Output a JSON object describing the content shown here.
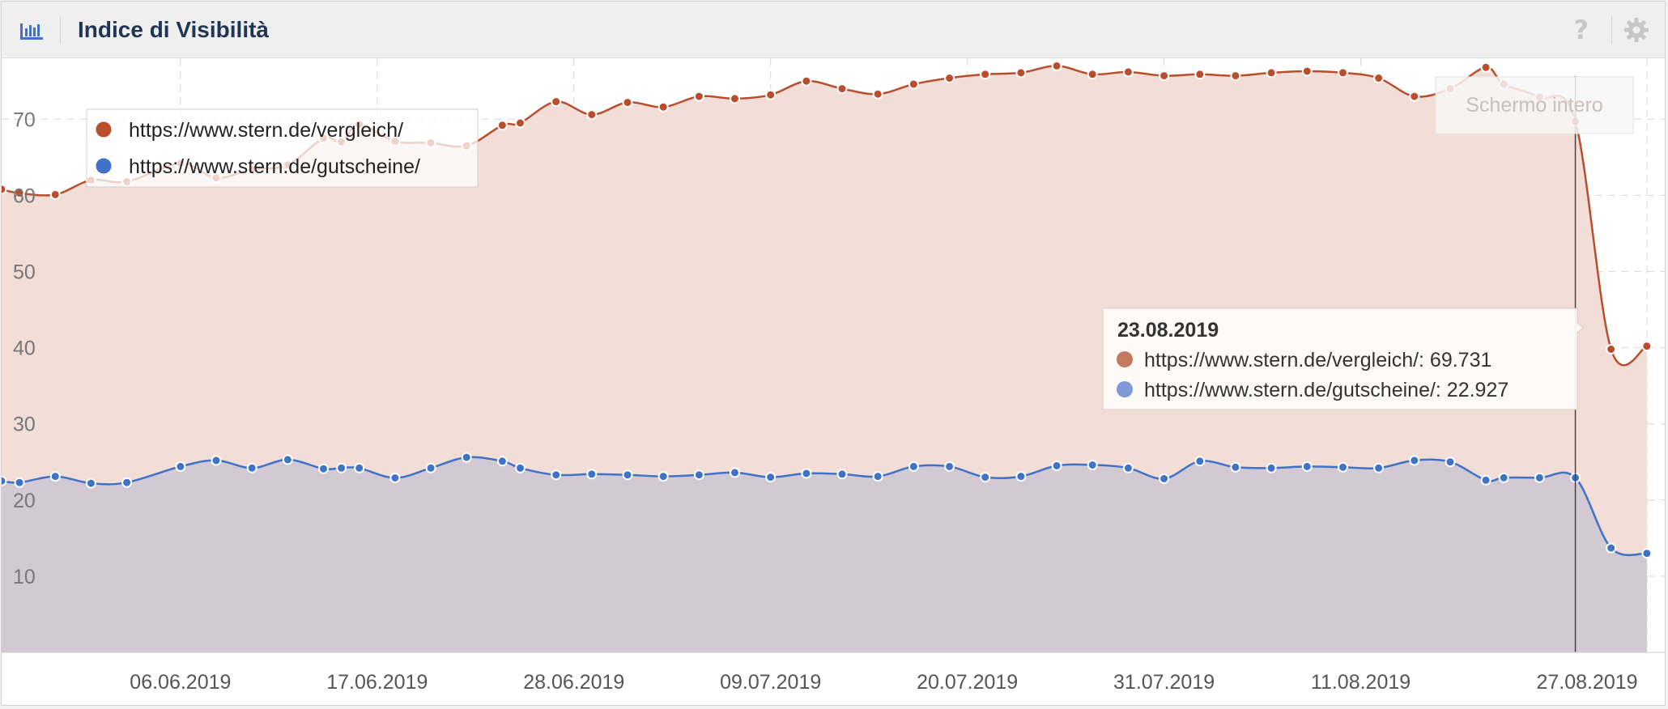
{
  "header": {
    "title": "Indice di Visibilità",
    "chart_icon": "bar-chart-icon",
    "help_icon": "help-icon",
    "help_glyph": "?",
    "settings_icon": "gear-icon"
  },
  "fullscreen_label": "Schermo intero",
  "tooltip": {
    "date": "23.08.2019",
    "rows": [
      {
        "text": "https://www.stern.de/vergleich/: 69.731"
      },
      {
        "text": "https://www.stern.de/gutscheine/: 22.927"
      }
    ]
  },
  "colors": {
    "series1": "#b94e2c",
    "series2": "#3f73c8",
    "fill1": "#f2ddd7",
    "fill2": "#cfc6d5"
  },
  "chart_data": {
    "type": "area",
    "ylim": [
      0,
      78
    ],
    "yticks": [
      10,
      20,
      30,
      40,
      50,
      60,
      70
    ],
    "xlim": [
      "2019-05-27",
      "2019-08-28"
    ],
    "xticks": [
      "06.06.2019",
      "17.06.2019",
      "28.06.2019",
      "09.07.2019",
      "20.07.2019",
      "31.07.2019",
      "11.08.2019",
      "27.08.2019"
    ],
    "grid": true,
    "legend_position": "top-left",
    "highlight_date": "2019-08-23",
    "series": [
      {
        "name": "https://www.stern.de/vergleich/",
        "x": [
          "2019-05-27",
          "2019-05-28",
          "2019-05-30",
          "2019-06-01",
          "2019-06-03",
          "2019-06-06",
          "2019-06-08",
          "2019-06-10",
          "2019-06-12",
          "2019-06-14",
          "2019-06-15",
          "2019-06-16",
          "2019-06-18",
          "2019-06-20",
          "2019-06-22",
          "2019-06-24",
          "2019-06-25",
          "2019-06-27",
          "2019-06-29",
          "2019-07-01",
          "2019-07-03",
          "2019-07-05",
          "2019-07-07",
          "2019-07-09",
          "2019-07-11",
          "2019-07-13",
          "2019-07-15",
          "2019-07-17",
          "2019-07-19",
          "2019-07-21",
          "2019-07-23",
          "2019-07-25",
          "2019-07-27",
          "2019-07-29",
          "2019-07-31",
          "2019-08-02",
          "2019-08-04",
          "2019-08-06",
          "2019-08-08",
          "2019-08-10",
          "2019-08-12",
          "2019-08-14",
          "2019-08-16",
          "2019-08-18",
          "2019-08-19",
          "2019-08-21",
          "2019-08-23",
          "2019-08-25",
          "2019-08-27"
        ],
        "values": [
          60.8,
          60.3,
          60.1,
          62.0,
          61.8,
          64.2,
          62.3,
          63.4,
          64.0,
          67.5,
          67.0,
          69.3,
          67.1,
          66.9,
          66.5,
          69.2,
          69.5,
          72.3,
          70.6,
          72.2,
          71.6,
          73.0,
          72.7,
          73.2,
          75.0,
          74.0,
          73.3,
          74.6,
          75.4,
          75.9,
          76.1,
          77.0,
          75.9,
          76.2,
          75.7,
          75.9,
          75.7,
          76.1,
          76.3,
          76.1,
          75.4,
          73.0,
          74.0,
          76.8,
          74.6,
          72.9,
          69.731,
          39.8,
          40.2
        ]
      },
      {
        "name": "https://www.stern.de/gutscheine/",
        "x": [
          "2019-05-27",
          "2019-05-28",
          "2019-05-30",
          "2019-06-01",
          "2019-06-03",
          "2019-06-06",
          "2019-06-08",
          "2019-06-10",
          "2019-06-12",
          "2019-06-14",
          "2019-06-15",
          "2019-06-16",
          "2019-06-18",
          "2019-06-20",
          "2019-06-22",
          "2019-06-24",
          "2019-06-25",
          "2019-06-27",
          "2019-06-29",
          "2019-07-01",
          "2019-07-03",
          "2019-07-05",
          "2019-07-07",
          "2019-07-09",
          "2019-07-11",
          "2019-07-13",
          "2019-07-15",
          "2019-07-17",
          "2019-07-19",
          "2019-07-21",
          "2019-07-23",
          "2019-07-25",
          "2019-07-27",
          "2019-07-29",
          "2019-07-31",
          "2019-08-02",
          "2019-08-04",
          "2019-08-06",
          "2019-08-08",
          "2019-08-10",
          "2019-08-12",
          "2019-08-14",
          "2019-08-16",
          "2019-08-18",
          "2019-08-19",
          "2019-08-21",
          "2019-08-23",
          "2019-08-25",
          "2019-08-27"
        ],
        "values": [
          22.5,
          22.3,
          23.1,
          22.2,
          22.3,
          24.4,
          25.2,
          24.2,
          25.3,
          24.1,
          24.2,
          24.2,
          22.9,
          24.2,
          25.6,
          25.1,
          24.2,
          23.3,
          23.4,
          23.3,
          23.1,
          23.3,
          23.6,
          23.0,
          23.5,
          23.4,
          23.1,
          24.4,
          24.4,
          23.0,
          23.1,
          24.5,
          24.6,
          24.2,
          22.8,
          25.1,
          24.3,
          24.2,
          24.4,
          24.3,
          24.2,
          25.2,
          25.0,
          22.6,
          22.927,
          22.927,
          22.927,
          13.7,
          13.0
        ]
      }
    ]
  }
}
